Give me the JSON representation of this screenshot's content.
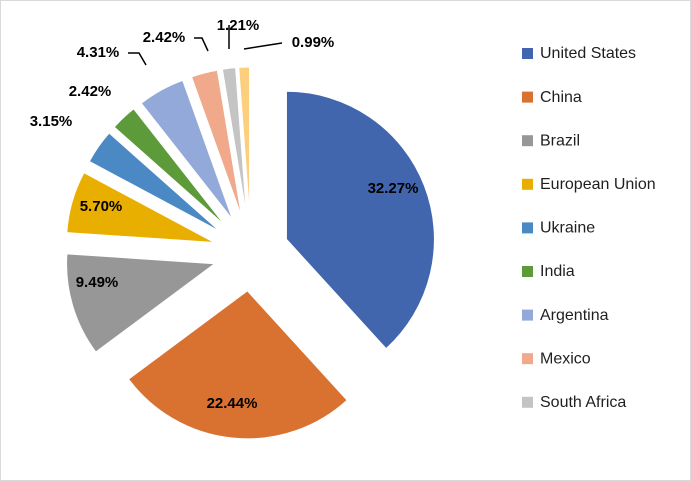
{
  "chart_data": {
    "type": "pie",
    "title": "",
    "legend_position": "right",
    "slices": [
      {
        "label": "United States",
        "value": 32.27,
        "display": "32.27%",
        "color": "#4166AE",
        "in_legend": true
      },
      {
        "label": "China",
        "value": 22.44,
        "display": "22.44%",
        "color": "#D97230",
        "in_legend": true
      },
      {
        "label": "Brazil",
        "value": 9.49,
        "display": "9.49%",
        "color": "#979797",
        "in_legend": true
      },
      {
        "label": "European Union",
        "value": 5.7,
        "display": "5.70%",
        "color": "#E8AE00",
        "in_legend": true
      },
      {
        "label": "Ukraine",
        "value": 3.15,
        "display": "3.15%",
        "color": "#4A89C4",
        "in_legend": true
      },
      {
        "label": "India",
        "value": 2.42,
        "display": "2.42%",
        "color": "#5D9A3A",
        "in_legend": true
      },
      {
        "label": "Argentina",
        "value": 4.31,
        "display": "4.31%",
        "color": "#93A9DA",
        "in_legend": true
      },
      {
        "label": "Mexico",
        "value": 2.42,
        "display": "2.42%",
        "color": "#F0A98A",
        "in_legend": true
      },
      {
        "label": "South Africa",
        "value": 1.21,
        "display": "1.21%",
        "color": "#C4C4C4",
        "in_legend": true
      },
      {
        "label": "",
        "value": 0.99,
        "display": "0.99%",
        "color": "#FCCF7E",
        "in_legend": false
      }
    ]
  }
}
